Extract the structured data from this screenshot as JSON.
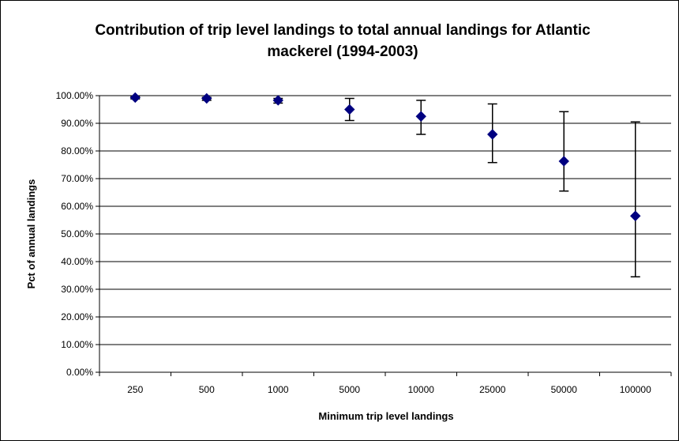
{
  "chart_data": {
    "type": "scatter",
    "title_lines": [
      "Contribution of trip level landings to total annual landings for Atlantic",
      "mackerel (1994-2003)"
    ],
    "xlabel": "Minimum trip level landings",
    "ylabel": "Pct of annual landings",
    "categories": [
      "250",
      "500",
      "1000",
      "5000",
      "10000",
      "25000",
      "50000",
      "100000"
    ],
    "values": [
      99.3,
      99.0,
      98.3,
      95.0,
      92.5,
      86.0,
      76.3,
      56.5
    ],
    "error_low": [
      98.8,
      98.3,
      97.3,
      91.0,
      86.0,
      75.8,
      65.5,
      34.5
    ],
    "error_high": [
      99.7,
      99.4,
      99.0,
      99.0,
      98.3,
      97.0,
      94.2,
      90.5
    ],
    "ylim": [
      0,
      100
    ],
    "ytick_step": 10,
    "ytick_labels": [
      "0.00%",
      "10.00%",
      "20.00%",
      "30.00%",
      "40.00%",
      "50.00%",
      "60.00%",
      "70.00%",
      "80.00%",
      "90.00%",
      "100.00%"
    ],
    "grid": true,
    "legend": "none",
    "marker": "diamond",
    "marker_color": "#000080"
  }
}
